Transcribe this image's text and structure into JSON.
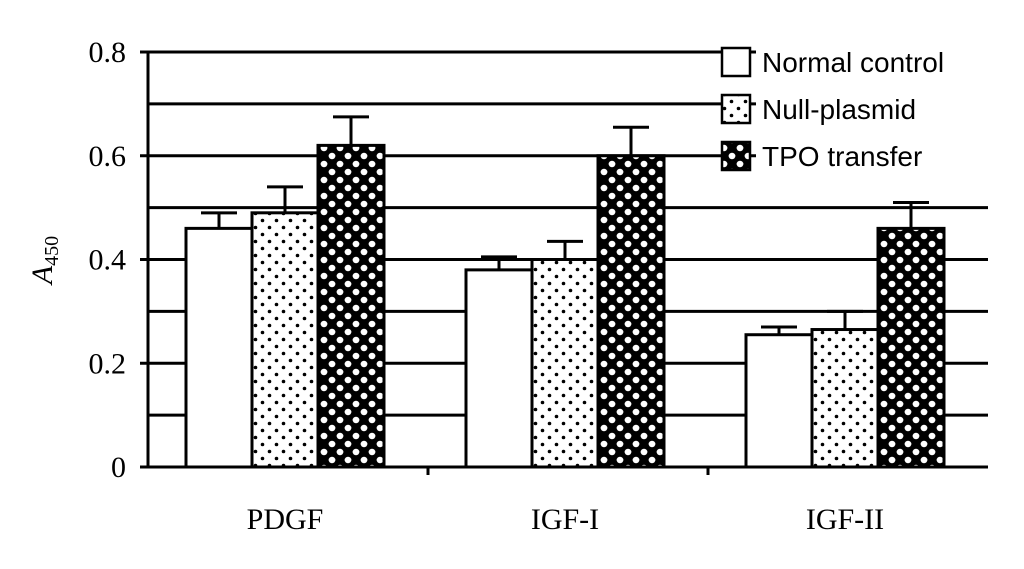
{
  "chart_data": {
    "type": "bar",
    "categories": [
      "PDGF",
      "IGF-I",
      "IGF-II"
    ],
    "series": [
      {
        "name": "Normal control",
        "pattern": "none",
        "values": [
          0.46,
          0.38,
          0.255
        ],
        "errors": [
          0.03,
          0.025,
          0.015
        ]
      },
      {
        "name": "Null-plasmid",
        "pattern": "sparse-dots",
        "values": [
          0.49,
          0.4,
          0.265
        ],
        "errors": [
          0.05,
          0.035,
          0.035
        ]
      },
      {
        "name": "TPO transfer",
        "pattern": "dense-dots",
        "values": [
          0.62,
          0.6,
          0.46
        ],
        "errors": [
          0.055,
          0.055,
          0.05
        ]
      }
    ],
    "ylabel_main": "A",
    "ylabel_sub": "450",
    "xlabel": "",
    "ylim": [
      0,
      0.8
    ],
    "yticks": [
      "0",
      "0.2",
      "0.4",
      "0.6",
      "0.8"
    ],
    "grid": true,
    "legend_position": "top-right"
  },
  "colors": {
    "ink": "#000000",
    "background": "#ffffff"
  }
}
